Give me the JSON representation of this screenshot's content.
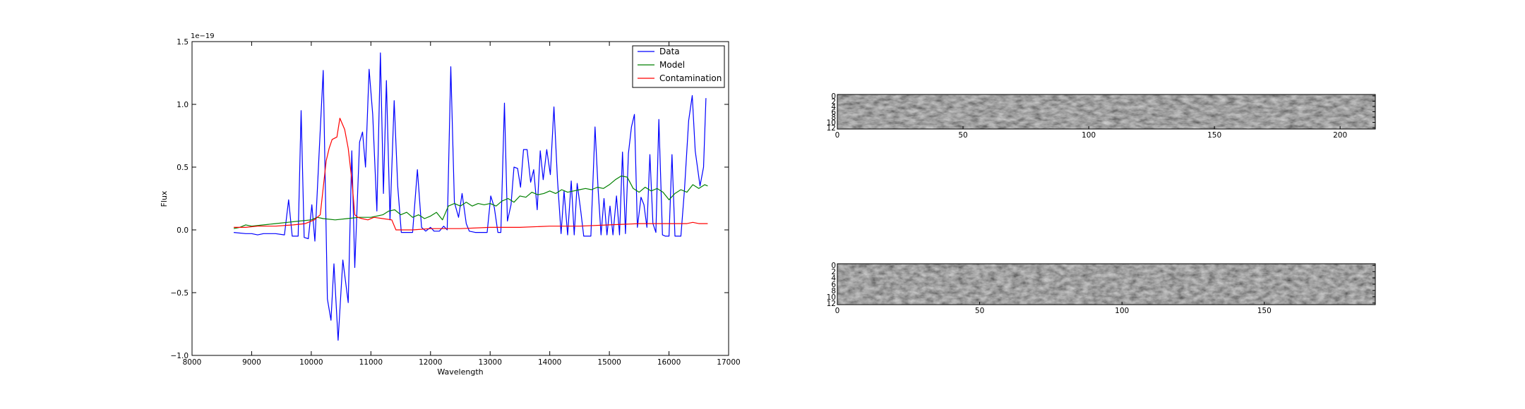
{
  "chart_data": [
    {
      "type": "line",
      "xlabel": "Wavelength",
      "ylabel": "Flux",
      "offset_label": "1e−19",
      "xlim": [
        8000,
        17000
      ],
      "ylim": [
        -1.0,
        1.5
      ],
      "xticks": [
        8000,
        9000,
        10000,
        11000,
        12000,
        13000,
        14000,
        15000,
        16000,
        17000
      ],
      "xtick_labels": [
        "8000",
        "9000",
        "10000",
        "11000",
        "12000",
        "13000",
        "14000",
        "15000",
        "16000",
        "17000"
      ],
      "yticks": [
        -1.0,
        -0.5,
        0.0,
        0.5,
        1.0,
        1.5
      ],
      "ytick_labels": [
        "−1.0",
        "−0.5",
        "0.0",
        "0.5",
        "1.0",
        "1.5"
      ],
      "legend_position": "top-right",
      "grid": false,
      "series": [
        {
          "name": "Data",
          "color": "#0000ff",
          "points": [
            [
              8700,
              -0.02
            ],
            [
              8900,
              -0.03
            ],
            [
              9000,
              -0.03
            ],
            [
              9100,
              -0.04
            ],
            [
              9200,
              -0.03
            ],
            [
              9400,
              -0.03
            ],
            [
              9550,
              -0.04
            ],
            [
              9620,
              0.24
            ],
            [
              9680,
              -0.05
            ],
            [
              9780,
              -0.05
            ],
            [
              9830,
              0.95
            ],
            [
              9880,
              -0.06
            ],
            [
              9950,
              -0.07
            ],
            [
              10010,
              0.2
            ],
            [
              10060,
              -0.09
            ],
            [
              10130,
              0.6
            ],
            [
              10200,
              1.27
            ],
            [
              10270,
              -0.55
            ],
            [
              10330,
              -0.72
            ],
            [
              10380,
              -0.27
            ],
            [
              10450,
              -0.88
            ],
            [
              10530,
              -0.24
            ],
            [
              10620,
              -0.58
            ],
            [
              10680,
              0.63
            ],
            [
              10730,
              -0.3
            ],
            [
              10810,
              0.7
            ],
            [
              10860,
              0.78
            ],
            [
              10910,
              0.5
            ],
            [
              10970,
              1.28
            ],
            [
              11030,
              0.92
            ],
            [
              11100,
              0.15
            ],
            [
              11160,
              1.41
            ],
            [
              11210,
              0.29
            ],
            [
              11260,
              1.19
            ],
            [
              11320,
              0.08
            ],
            [
              11390,
              1.03
            ],
            [
              11450,
              0.35
            ],
            [
              11510,
              -0.02
            ],
            [
              11600,
              -0.02
            ],
            [
              11700,
              -0.02
            ],
            [
              11780,
              0.48
            ],
            [
              11850,
              0.02
            ],
            [
              11920,
              -0.01
            ],
            [
              12000,
              0.02
            ],
            [
              12060,
              -0.01
            ],
            [
              12150,
              -0.01
            ],
            [
              12220,
              0.03
            ],
            [
              12280,
              0.0
            ],
            [
              12340,
              1.3
            ],
            [
              12400,
              0.22
            ],
            [
              12470,
              0.1
            ],
            [
              12530,
              0.29
            ],
            [
              12600,
              0.05
            ],
            [
              12650,
              -0.01
            ],
            [
              12750,
              -0.02
            ],
            [
              12850,
              -0.02
            ],
            [
              12950,
              -0.02
            ],
            [
              13010,
              0.27
            ],
            [
              13070,
              0.18
            ],
            [
              13130,
              -0.02
            ],
            [
              13180,
              -0.02
            ],
            [
              13240,
              1.01
            ],
            [
              13290,
              0.07
            ],
            [
              13350,
              0.2
            ],
            [
              13400,
              0.5
            ],
            [
              13460,
              0.49
            ],
            [
              13510,
              0.34
            ],
            [
              13560,
              0.64
            ],
            [
              13620,
              0.64
            ],
            [
              13680,
              0.38
            ],
            [
              13730,
              0.48
            ],
            [
              13790,
              0.16
            ],
            [
              13840,
              0.63
            ],
            [
              13890,
              0.4
            ],
            [
              13950,
              0.64
            ],
            [
              14010,
              0.44
            ],
            [
              14070,
              0.98
            ],
            [
              14130,
              0.4
            ],
            [
              14190,
              -0.03
            ],
            [
              14240,
              0.31
            ],
            [
              14300,
              -0.04
            ],
            [
              14360,
              0.39
            ],
            [
              14410,
              -0.04
            ],
            [
              14460,
              0.37
            ],
            [
              14520,
              0.15
            ],
            [
              14570,
              -0.05
            ],
            [
              14630,
              -0.05
            ],
            [
              14690,
              -0.05
            ],
            [
              14760,
              0.82
            ],
            [
              14810,
              0.33
            ],
            [
              14860,
              -0.04
            ],
            [
              14910,
              0.25
            ],
            [
              14960,
              -0.04
            ],
            [
              15010,
              0.19
            ],
            [
              15060,
              -0.04
            ],
            [
              15120,
              0.27
            ],
            [
              15170,
              -0.04
            ],
            [
              15220,
              0.62
            ],
            [
              15270,
              -0.03
            ],
            [
              15320,
              0.61
            ],
            [
              15370,
              0.82
            ],
            [
              15420,
              0.92
            ],
            [
              15470,
              0.02
            ],
            [
              15530,
              0.26
            ],
            [
              15580,
              0.2
            ],
            [
              15630,
              0.02
            ],
            [
              15680,
              0.6
            ],
            [
              15730,
              0.05
            ],
            [
              15780,
              -0.02
            ],
            [
              15830,
              0.88
            ],
            [
              15890,
              -0.04
            ],
            [
              15940,
              -0.05
            ],
            [
              16000,
              -0.05
            ],
            [
              16050,
              0.6
            ],
            [
              16100,
              -0.05
            ],
            [
              16150,
              -0.05
            ],
            [
              16200,
              -0.05
            ],
            [
              16260,
              0.32
            ],
            [
              16330,
              0.87
            ],
            [
              16390,
              1.07
            ],
            [
              16440,
              0.63
            ],
            [
              16520,
              0.35
            ],
            [
              16580,
              0.5
            ],
            [
              16620,
              1.05
            ]
          ]
        },
        {
          "name": "Model",
          "color": "#008000",
          "points": [
            [
              8700,
              0.01
            ],
            [
              8800,
              0.02
            ],
            [
              8900,
              0.04
            ],
            [
              9000,
              0.03
            ],
            [
              9200,
              0.04
            ],
            [
              9400,
              0.05
            ],
            [
              9600,
              0.06
            ],
            [
              9800,
              0.07
            ],
            [
              10000,
              0.08
            ],
            [
              10100,
              0.1
            ],
            [
              10200,
              0.09
            ],
            [
              10400,
              0.08
            ],
            [
              10600,
              0.09
            ],
            [
              10800,
              0.1
            ],
            [
              11000,
              0.1
            ],
            [
              11200,
              0.12
            ],
            [
              11300,
              0.15
            ],
            [
              11400,
              0.16
            ],
            [
              11500,
              0.12
            ],
            [
              11600,
              0.14
            ],
            [
              11700,
              0.1
            ],
            [
              11800,
              0.12
            ],
            [
              11900,
              0.09
            ],
            [
              12000,
              0.11
            ],
            [
              12100,
              0.14
            ],
            [
              12200,
              0.08
            ],
            [
              12300,
              0.19
            ],
            [
              12400,
              0.21
            ],
            [
              12500,
              0.19
            ],
            [
              12600,
              0.22
            ],
            [
              12700,
              0.19
            ],
            [
              12800,
              0.21
            ],
            [
              12900,
              0.2
            ],
            [
              13000,
              0.21
            ],
            [
              13100,
              0.19
            ],
            [
              13200,
              0.23
            ],
            [
              13300,
              0.25
            ],
            [
              13400,
              0.22
            ],
            [
              13500,
              0.27
            ],
            [
              13600,
              0.26
            ],
            [
              13700,
              0.3
            ],
            [
              13800,
              0.28
            ],
            [
              13900,
              0.29
            ],
            [
              14000,
              0.31
            ],
            [
              14100,
              0.29
            ],
            [
              14200,
              0.32
            ],
            [
              14300,
              0.3
            ],
            [
              14400,
              0.31
            ],
            [
              14500,
              0.32
            ],
            [
              14600,
              0.33
            ],
            [
              14700,
              0.32
            ],
            [
              14800,
              0.34
            ],
            [
              14900,
              0.33
            ],
            [
              15000,
              0.36
            ],
            [
              15100,
              0.4
            ],
            [
              15200,
              0.43
            ],
            [
              15300,
              0.42
            ],
            [
              15400,
              0.33
            ],
            [
              15500,
              0.3
            ],
            [
              15600,
              0.34
            ],
            [
              15700,
              0.31
            ],
            [
              15800,
              0.33
            ],
            [
              15900,
              0.3
            ],
            [
              16000,
              0.24
            ],
            [
              16100,
              0.29
            ],
            [
              16200,
              0.32
            ],
            [
              16300,
              0.3
            ],
            [
              16400,
              0.36
            ],
            [
              16500,
              0.33
            ],
            [
              16600,
              0.36
            ],
            [
              16650,
              0.35
            ]
          ]
        },
        {
          "name": "Contamination",
          "color": "#ff0000",
          "points": [
            [
              8700,
              0.02
            ],
            [
              8900,
              0.02
            ],
            [
              9100,
              0.03
            ],
            [
              9400,
              0.03
            ],
            [
              9700,
              0.04
            ],
            [
              9900,
              0.05
            ],
            [
              10050,
              0.08
            ],
            [
              10150,
              0.12
            ],
            [
              10250,
              0.55
            ],
            [
              10300,
              0.65
            ],
            [
              10350,
              0.72
            ],
            [
              10430,
              0.74
            ],
            [
              10480,
              0.89
            ],
            [
              10560,
              0.8
            ],
            [
              10620,
              0.65
            ],
            [
              10680,
              0.4
            ],
            [
              10730,
              0.12
            ],
            [
              10780,
              0.1
            ],
            [
              10850,
              0.09
            ],
            [
              10950,
              0.08
            ],
            [
              11050,
              0.1
            ],
            [
              11200,
              0.09
            ],
            [
              11350,
              0.08
            ],
            [
              11420,
              0.0
            ],
            [
              11500,
              0.0
            ],
            [
              11700,
              0.0
            ],
            [
              12000,
              0.01
            ],
            [
              12500,
              0.01
            ],
            [
              13000,
              0.02
            ],
            [
              13500,
              0.02
            ],
            [
              14000,
              0.03
            ],
            [
              14500,
              0.03
            ],
            [
              15000,
              0.04
            ],
            [
              15500,
              0.05
            ],
            [
              16000,
              0.05
            ],
            [
              16300,
              0.05
            ],
            [
              16400,
              0.06
            ],
            [
              16500,
              0.05
            ],
            [
              16650,
              0.05
            ]
          ]
        }
      ]
    },
    {
      "type": "heatmap",
      "colormap": "gray",
      "xticks": [
        0,
        50,
        100,
        150,
        200
      ],
      "xtick_labels": [
        "0",
        "50",
        "100",
        "150",
        "200"
      ],
      "yticks": [
        0,
        2,
        4,
        6,
        8,
        10,
        12
      ],
      "ytick_labels": [
        "0",
        "2",
        "4",
        "6",
        "8",
        "10",
        "12"
      ],
      "xlim": [
        0,
        214
      ],
      "ylim": [
        13,
        0
      ]
    },
    {
      "type": "heatmap",
      "colormap": "gray",
      "xticks": [
        0,
        50,
        100,
        150
      ],
      "xtick_labels": [
        "0",
        "50",
        "100",
        "150"
      ],
      "yticks": [
        0,
        2,
        4,
        6,
        8,
        10,
        12
      ],
      "ytick_labels": [
        "0",
        "2",
        "4",
        "6",
        "8",
        "10",
        "12"
      ],
      "xlim": [
        0,
        189
      ],
      "ylim": [
        13,
        0
      ]
    }
  ]
}
